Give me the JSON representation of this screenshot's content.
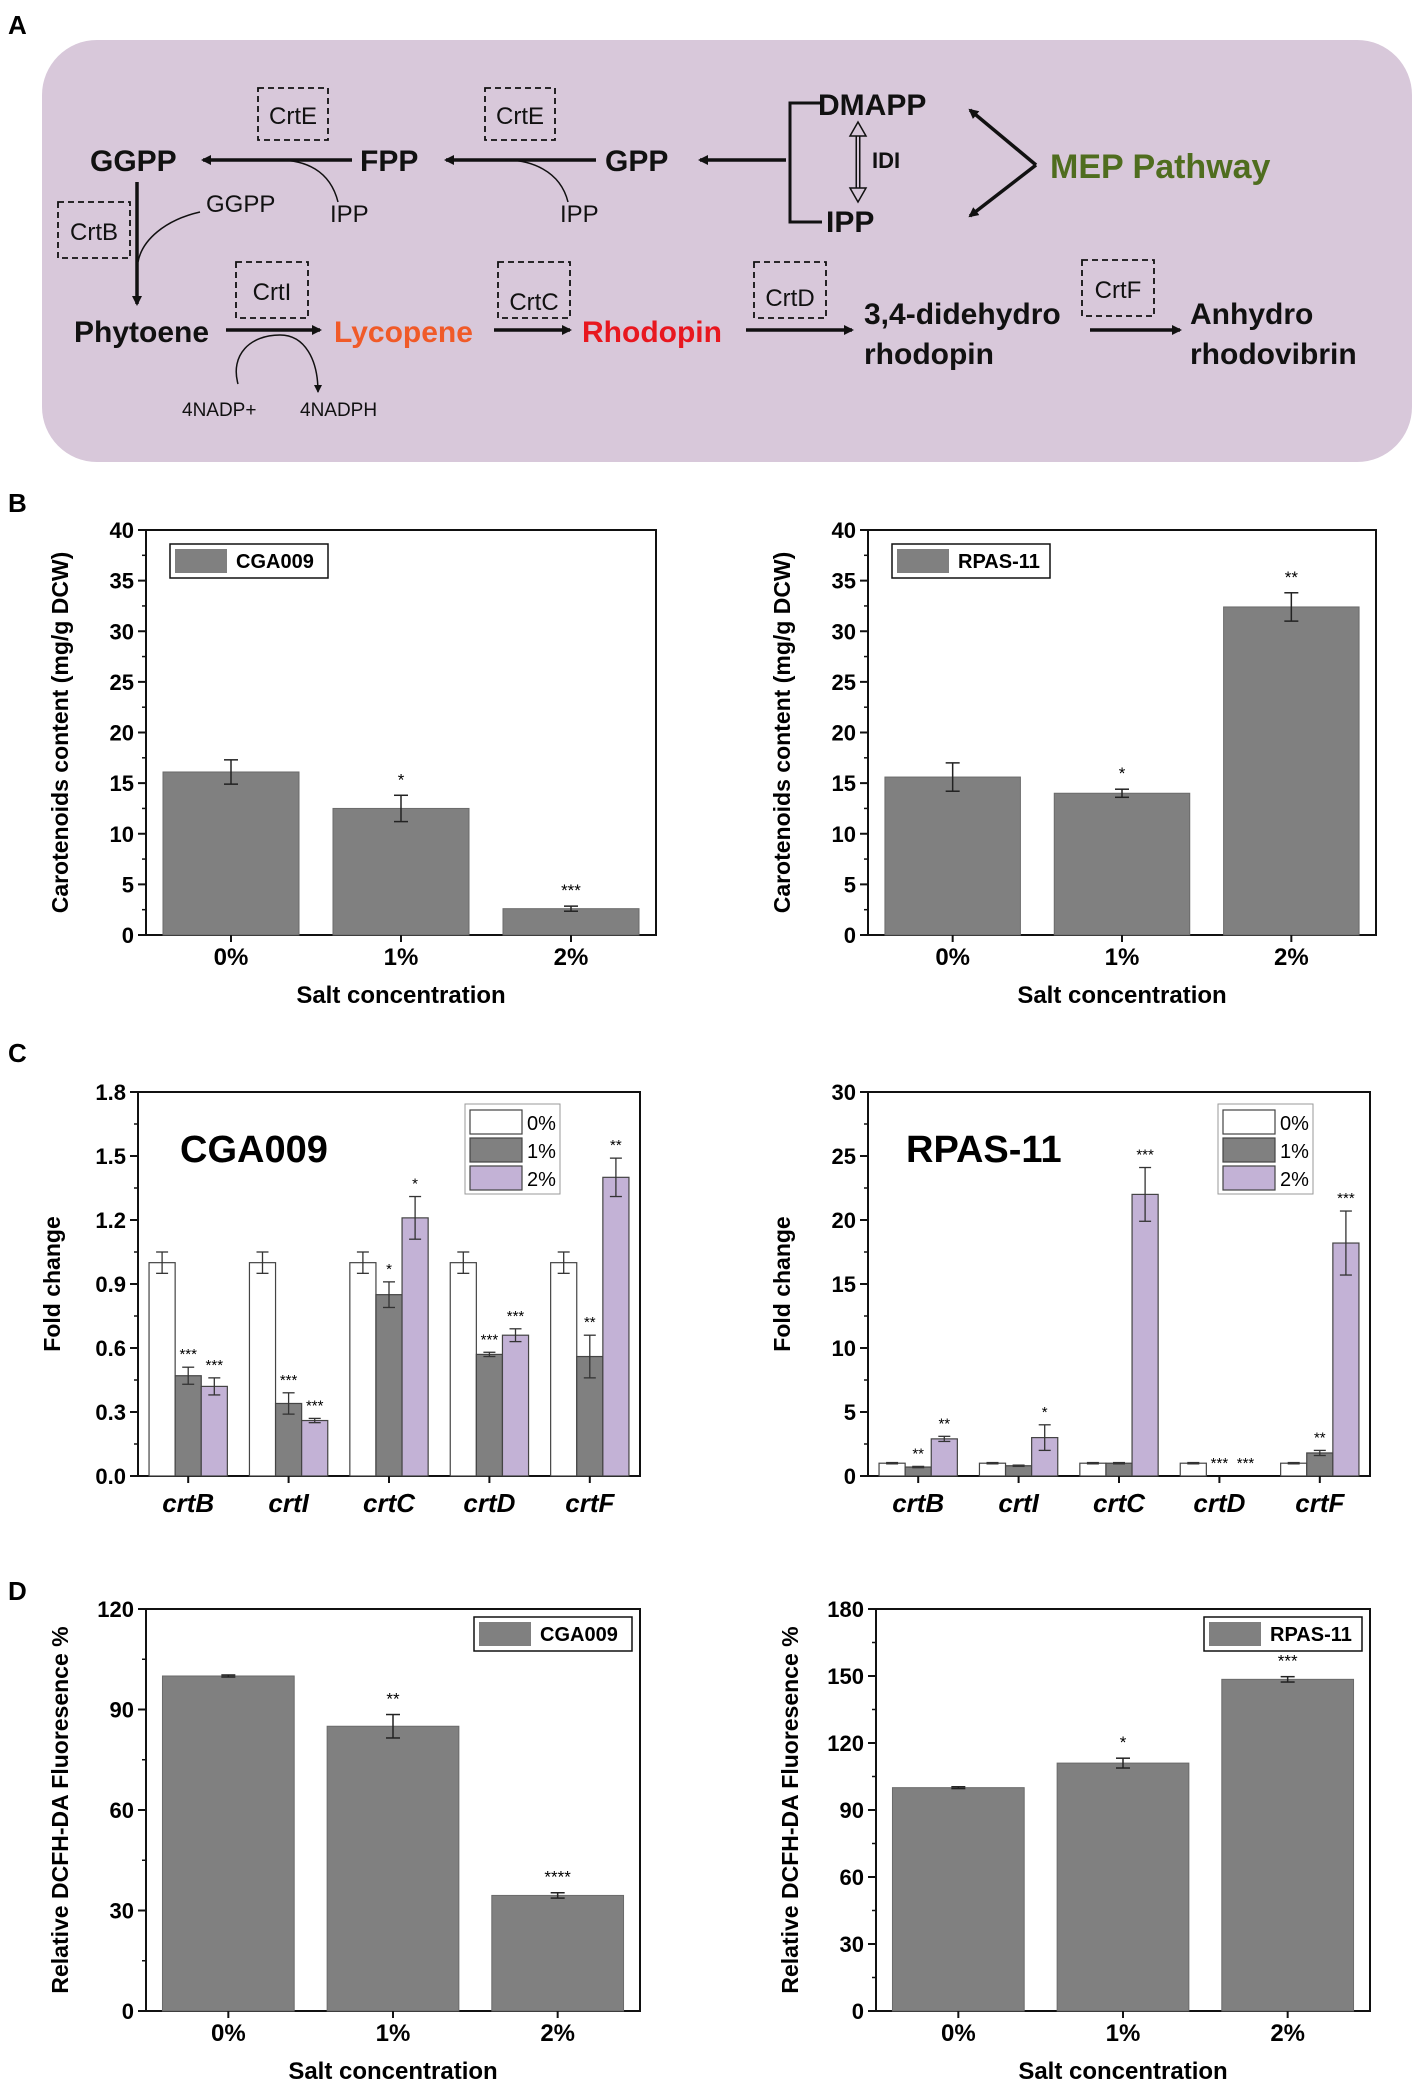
{
  "figure": {
    "panel_labels": [
      "A",
      "B",
      "C",
      "D"
    ]
  },
  "pathway": {
    "nodes": {
      "dmapp": "DMAPP",
      "ipp_main": "IPP",
      "idi": "IDI",
      "mep": "MEP Pathway",
      "gpp": "GPP",
      "fpp": "FPP",
      "ggpp": "GGPP",
      "phytoene": "Phytoene",
      "lycopene": "Lycopene",
      "rhodopin": "Rhodopin",
      "didehydro_1": "3,4-didehydro",
      "didehydro_2": "rhodopin",
      "anhydro_1": "Anhydro",
      "anhydro_2": "rhodovibrin"
    },
    "cofactors": {
      "ipp_1": "IPP",
      "ipp_2": "IPP",
      "ggpp_side": "GGPP",
      "nadp": "4NADP+",
      "nadph": "4NADPH"
    },
    "enzymes": {
      "crte_1": "CrtE",
      "crte_2": "CrtE",
      "crtb": "CrtB",
      "crti": "CrtI",
      "crtc": "CrtC",
      "crtd": "CrtD",
      "crtf": "CrtF"
    },
    "colors": {
      "background": "#d8c8da",
      "mep": "#4f6d1f",
      "lycopene": "#f05a28",
      "rhodopin": "#e8171f",
      "text": "#111111"
    }
  },
  "chart_data": [
    {
      "id": "B-left",
      "type": "bar",
      "categories": [
        "0%",
        "1%",
        "2%"
      ],
      "values": [
        16.1,
        12.5,
        2.6
      ],
      "errors": [
        1.2,
        1.3,
        0.25
      ],
      "significance": [
        "",
        "*",
        "***"
      ],
      "legend": "CGA009",
      "xlabel": "Salt concentration",
      "ylabel": "Carotenoids content (mg/g DCW)",
      "ylim": [
        0,
        40
      ],
      "yticks": [
        "0",
        "5",
        "10",
        "15",
        "20",
        "25",
        "30",
        "35",
        "40"
      ],
      "bar_color": "#808080"
    },
    {
      "id": "B-right",
      "type": "bar",
      "categories": [
        "0%",
        "1%",
        "2%"
      ],
      "values": [
        15.6,
        14.0,
        32.4
      ],
      "errors": [
        1.4,
        0.4,
        1.4
      ],
      "significance": [
        "",
        "*",
        "**"
      ],
      "legend": "RPAS-11",
      "xlabel": "Salt concentration",
      "ylabel": "Carotenoids content (mg/g DCW)",
      "ylim": [
        0,
        40
      ],
      "yticks": [
        "0",
        "5",
        "10",
        "15",
        "20",
        "25",
        "30",
        "35",
        "40"
      ],
      "bar_color": "#808080"
    },
    {
      "id": "C-left",
      "type": "bar",
      "title": "CGA009",
      "categories": [
        "crtB",
        "crtI",
        "crtC",
        "crtD",
        "crtF"
      ],
      "series": [
        {
          "name": "0%",
          "color": "#ffffff",
          "values": [
            1.0,
            1.0,
            1.0,
            1.0,
            1.0
          ],
          "errors": [
            0.05,
            0.05,
            0.05,
            0.05,
            0.05
          ],
          "significance": [
            "",
            "",
            "",
            "",
            ""
          ]
        },
        {
          "name": "1%",
          "color": "#808080",
          "values": [
            0.47,
            0.34,
            0.85,
            0.57,
            0.56
          ],
          "errors": [
            0.04,
            0.05,
            0.06,
            0.01,
            0.1
          ],
          "significance": [
            "***",
            "***",
            "*",
            "***",
            "**"
          ]
        },
        {
          "name": "2%",
          "color": "#c3b2d6",
          "values": [
            0.42,
            0.26,
            1.21,
            0.66,
            1.4
          ],
          "errors": [
            0.04,
            0.01,
            0.1,
            0.03,
            0.09
          ],
          "significance": [
            "***",
            "***",
            "*",
            "***",
            "**"
          ]
        }
      ],
      "xlabel": "",
      "ylabel": "Fold change",
      "ylim": [
        0,
        1.8
      ],
      "yticks": [
        "0.0",
        "0.3",
        "0.6",
        "0.9",
        "1.2",
        "1.5",
        "1.8"
      ]
    },
    {
      "id": "C-right",
      "type": "bar",
      "title": "RPAS-11",
      "categories": [
        "crtB",
        "crtI",
        "crtC",
        "crtD",
        "crtF"
      ],
      "series": [
        {
          "name": "0%",
          "color": "#ffffff",
          "values": [
            1.0,
            1.0,
            1.0,
            1.0,
            1.0
          ],
          "errors": [
            0.05,
            0.05,
            0.05,
            0.05,
            0.05
          ],
          "significance": [
            "",
            "",
            "",
            "",
            ""
          ]
        },
        {
          "name": "1%",
          "color": "#808080",
          "values": [
            0.7,
            0.8,
            1.0,
            0.0,
            1.8
          ],
          "errors": [
            0.05,
            0.05,
            0.05,
            0.0,
            0.2
          ],
          "significance": [
            "**",
            "",
            "",
            "***",
            "**"
          ]
        },
        {
          "name": "2%",
          "color": "#c3b2d6",
          "values": [
            2.9,
            3.0,
            22.0,
            0.0,
            18.2
          ],
          "errors": [
            0.2,
            1.0,
            2.1,
            0.0,
            2.5
          ],
          "significance": [
            "**",
            "*",
            "***",
            "***",
            "***"
          ]
        }
      ],
      "xlabel": "",
      "ylabel": "Fold change",
      "ylim": [
        0,
        30
      ],
      "yticks": [
        "0",
        "5",
        "10",
        "15",
        "20",
        "25",
        "30"
      ]
    },
    {
      "id": "D-left",
      "type": "bar",
      "categories": [
        "0%",
        "1%",
        "2%"
      ],
      "values": [
        100,
        85,
        34.5
      ],
      "errors": [
        0.3,
        3.5,
        0.8
      ],
      "significance": [
        "",
        "**",
        "****"
      ],
      "legend": "CGA009",
      "xlabel": "Salt concentration",
      "ylabel": "Relative DCFH-DA Fluoresence %",
      "ylim": [
        0,
        120
      ],
      "yticks": [
        "0",
        "30",
        "60",
        "90",
        "120"
      ],
      "bar_color": "#808080"
    },
    {
      "id": "D-right",
      "type": "bar",
      "categories": [
        "0%",
        "1%",
        "2%"
      ],
      "values": [
        100,
        111,
        148.5
      ],
      "errors": [
        0.4,
        2.2,
        1.2
      ],
      "significance": [
        "",
        "*",
        "***"
      ],
      "legend": "RPAS-11",
      "xlabel": "Salt concentration",
      "ylabel": "Relative DCFH-DA Fluoresence %",
      "ylim": [
        0,
        180
      ],
      "yticks": [
        "0",
        "30",
        "60",
        "90",
        "120",
        "150",
        "180"
      ],
      "bar_color": "#808080"
    }
  ]
}
